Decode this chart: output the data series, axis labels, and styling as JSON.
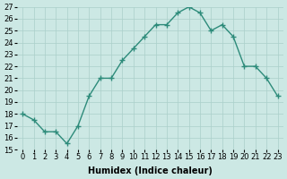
{
  "x": [
    0,
    1,
    2,
    3,
    4,
    5,
    6,
    7,
    8,
    9,
    10,
    11,
    12,
    13,
    14,
    15,
    16,
    17,
    18,
    19,
    20,
    21,
    22,
    23
  ],
  "y": [
    18,
    17.5,
    16.5,
    16.5,
    15.5,
    17,
    19.5,
    21,
    21,
    22.5,
    23.5,
    24.5,
    25.5,
    25.5,
    26.5,
    27,
    26.5,
    25,
    25.5,
    24.5,
    22,
    22,
    21,
    19.5
  ],
  "xlabel": "Humidex (Indice chaleur)",
  "ylim": [
    15,
    27
  ],
  "xlim": [
    -0.5,
    23.5
  ],
  "yticks": [
    15,
    16,
    17,
    18,
    19,
    20,
    21,
    22,
    23,
    24,
    25,
    26,
    27
  ],
  "xticks": [
    0,
    1,
    2,
    3,
    4,
    5,
    6,
    7,
    8,
    9,
    10,
    11,
    12,
    13,
    14,
    15,
    16,
    17,
    18,
    19,
    20,
    21,
    22,
    23
  ],
  "line_color": "#2d8b7a",
  "marker": "+",
  "marker_size": 4,
  "marker_linewidth": 1.0,
  "background_color": "#cce8e4",
  "grid_color": "#aacfca",
  "xlabel_fontsize": 7,
  "tick_fontsize": 6,
  "linewidth": 1.0
}
